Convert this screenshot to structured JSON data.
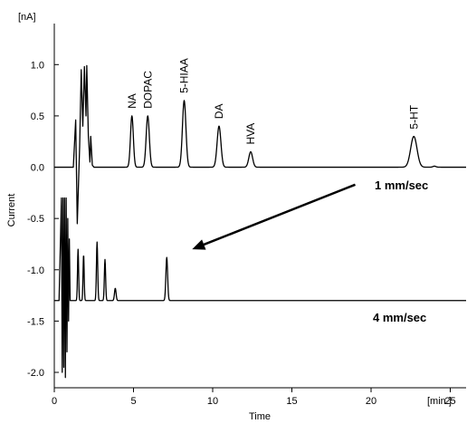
{
  "chart_data": {
    "type": "line",
    "title": "",
    "xlabel": "Time",
    "ylabel": "Current",
    "x_unit_label": "[min.]",
    "y_unit_label": "[nA]",
    "xlim": [
      0,
      26
    ],
    "ylim": [
      -2.15,
      1.4
    ],
    "grid": false,
    "x_ticks": [
      {
        "v": 0,
        "label": "0"
      },
      {
        "v": 5,
        "label": "5"
      },
      {
        "v": 10,
        "label": "10"
      },
      {
        "v": 15,
        "label": "15"
      },
      {
        "v": 20,
        "label": "20"
      },
      {
        "v": 25,
        "label": "25"
      }
    ],
    "y_ticks": [
      {
        "v": 1.0,
        "label": "1.0"
      },
      {
        "v": 0.5,
        "label": "0.5"
      },
      {
        "v": 0.0,
        "label": "0.0"
      },
      {
        "v": -0.5,
        "label": "-0.5"
      },
      {
        "v": -1.0,
        "label": "-1.0"
      },
      {
        "v": -1.5,
        "label": "-1.5"
      },
      {
        "v": -2.0,
        "label": "-2.0"
      }
    ],
    "series": [
      {
        "name": "1 mm/sec",
        "baseline": 0.0,
        "solvent_front": [
          [
            1.2,
            0.0
          ],
          [
            1.35,
            0.46
          ],
          [
            1.45,
            -0.55
          ],
          [
            1.6,
            0.2
          ],
          [
            1.7,
            0.95
          ],
          [
            1.8,
            0.4
          ],
          [
            1.9,
            0.98
          ],
          [
            2.0,
            0.5
          ],
          [
            2.05,
            0.99
          ],
          [
            2.15,
            0.3
          ],
          [
            2.25,
            0.05
          ],
          [
            2.3,
            0.3
          ],
          [
            2.4,
            0.02
          ],
          [
            2.5,
            0.0
          ]
        ],
        "peaks": [
          {
            "label": "NA",
            "t": 4.9,
            "height": 0.5,
            "width": 0.09
          },
          {
            "label": "DOPAC",
            "t": 5.9,
            "height": 0.5,
            "width": 0.1
          },
          {
            "label": "5-HIAA",
            "t": 8.2,
            "height": 0.65,
            "width": 0.11
          },
          {
            "label": "DA",
            "t": 10.4,
            "height": 0.4,
            "width": 0.12
          },
          {
            "label": "HVA",
            "t": 12.4,
            "height": 0.15,
            "width": 0.12
          },
          {
            "label": "5-HT",
            "t": 22.7,
            "height": 0.3,
            "width": 0.2
          },
          {
            "label": "",
            "t": 24.0,
            "height": 0.01,
            "width": 0.1
          }
        ]
      },
      {
        "name": "4 mm/sec",
        "baseline": -1.3,
        "solvent_front": [
          [
            0.3,
            -1.3
          ],
          [
            0.45,
            -0.3
          ],
          [
            0.5,
            -2.0
          ],
          [
            0.55,
            -0.3
          ],
          [
            0.6,
            -1.95
          ],
          [
            0.65,
            -0.3
          ],
          [
            0.7,
            -2.05
          ],
          [
            0.75,
            -0.3
          ],
          [
            0.8,
            -1.8
          ],
          [
            0.85,
            -0.5
          ],
          [
            0.9,
            -1.5
          ],
          [
            0.95,
            -0.7
          ],
          [
            1.0,
            -1.3
          ]
        ],
        "peaks": [
          {
            "label": "",
            "t": 1.5,
            "height": 0.5,
            "width": 0.035
          },
          {
            "label": "",
            "t": 1.85,
            "height": 0.45,
            "width": 0.035
          },
          {
            "label": "",
            "t": 2.7,
            "height": 0.57,
            "width": 0.04
          },
          {
            "label": "",
            "t": 3.2,
            "height": 0.4,
            "width": 0.04
          },
          {
            "label": "",
            "t": 3.85,
            "height": 0.12,
            "width": 0.05
          },
          {
            "label": "",
            "t": 7.1,
            "height": 0.42,
            "width": 0.055
          }
        ]
      }
    ],
    "annotations": [
      {
        "type": "arrow",
        "from": [
          19.0,
          -0.17
        ],
        "to": [
          8.7,
          -0.8
        ]
      }
    ]
  }
}
